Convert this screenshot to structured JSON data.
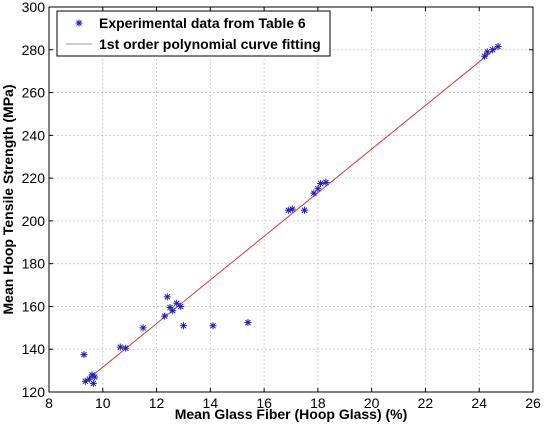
{
  "chart_data": {
    "type": "scatter",
    "title": "",
    "xlabel": "Mean Glass Fiber (Hoop Glass) (%)",
    "ylabel": "Mean Hoop Tensile Strength (MPa)",
    "xlim": [
      8,
      26
    ],
    "ylim": [
      120,
      300
    ],
    "xticks": [
      8,
      10,
      12,
      14,
      16,
      18,
      20,
      22,
      24,
      26
    ],
    "yticks": [
      120,
      140,
      160,
      180,
      200,
      220,
      240,
      260,
      280,
      300
    ],
    "grid": true,
    "legend_position": "top-left",
    "series": [
      {
        "name": "Experimental data from Table 6",
        "kind": "marker",
        "marker": "asterisk",
        "color": "#1f1fb4",
        "points": [
          [
            9.3,
            137.5
          ],
          [
            9.35,
            125
          ],
          [
            9.5,
            126
          ],
          [
            9.6,
            128
          ],
          [
            9.65,
            124
          ],
          [
            9.7,
            127
          ],
          [
            10.65,
            141
          ],
          [
            10.85,
            140.5
          ],
          [
            11.5,
            150
          ],
          [
            12.3,
            155.5
          ],
          [
            12.4,
            164.5
          ],
          [
            12.5,
            159.5
          ],
          [
            12.6,
            158
          ],
          [
            12.75,
            161.5
          ],
          [
            12.9,
            160
          ],
          [
            13.0,
            151
          ],
          [
            14.1,
            151
          ],
          [
            15.4,
            152.5
          ],
          [
            16.9,
            205
          ],
          [
            17.05,
            205.5
          ],
          [
            17.5,
            205
          ],
          [
            17.85,
            213
          ],
          [
            18.0,
            215
          ],
          [
            18.1,
            217.5
          ],
          [
            18.3,
            218
          ],
          [
            24.2,
            277
          ],
          [
            24.3,
            279
          ],
          [
            24.5,
            280
          ],
          [
            24.7,
            281.5
          ]
        ]
      },
      {
        "name": "1st order polynomial curve fitting",
        "kind": "line",
        "color": "#d93a3a",
        "points": [
          [
            9.4,
            125.5
          ],
          [
            24.7,
            281.5
          ]
        ]
      }
    ]
  }
}
